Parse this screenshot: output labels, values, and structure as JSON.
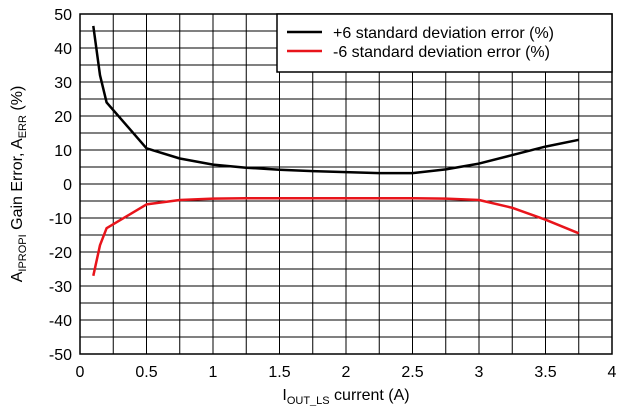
{
  "chart_data": {
    "type": "line",
    "xlabel": {
      "main": "I",
      "sub": "OUT_LS",
      "rest": " current (A)"
    },
    "ylabel": {
      "main": "A",
      "sub1": "IPROPI",
      "mid": " Gain Error, A",
      "sub2": "ERR",
      "rest": " (%)"
    },
    "xlim": [
      0,
      4
    ],
    "ylim": [
      -50,
      50
    ],
    "x_ticks": [
      0,
      0.5,
      1,
      1.5,
      2,
      2.5,
      3,
      3.5,
      4
    ],
    "x_tick_labels": [
      "0",
      "0.5",
      "1",
      "1.5",
      "2",
      "2.5",
      "3",
      "3.5",
      "4"
    ],
    "y_ticks": [
      -50,
      -40,
      -30,
      -20,
      -10,
      0,
      10,
      20,
      30,
      40,
      50
    ],
    "y_tick_labels": [
      "-50",
      "-40",
      "-30",
      "-20",
      "-10",
      "0",
      "10",
      "20",
      "30",
      "40",
      "50"
    ],
    "grid": true,
    "minor_x_step": 0.25,
    "minor_y_step": 5,
    "legend_position": "top-right",
    "series": [
      {
        "name": "+6 standard deviation error (%)",
        "color": "#000000",
        "x": [
          0.1,
          0.15,
          0.2,
          0.5,
          0.75,
          1.0,
          1.25,
          1.5,
          1.75,
          2.0,
          2.25,
          2.5,
          2.75,
          3.0,
          3.25,
          3.5,
          3.75
        ],
        "y": [
          46.5,
          32.0,
          24.0,
          10.5,
          7.5,
          5.7,
          4.8,
          4.2,
          3.8,
          3.5,
          3.2,
          3.2,
          4.3,
          6.0,
          8.5,
          11.0,
          13.0
        ]
      },
      {
        "name": "-6 standard deviation error (%)",
        "color": "#e8141b",
        "x": [
          0.1,
          0.15,
          0.2,
          0.5,
          0.75,
          1.0,
          1.25,
          1.5,
          1.75,
          2.0,
          2.25,
          2.5,
          2.75,
          3.0,
          3.25,
          3.5,
          3.75
        ],
        "y": [
          -27.0,
          -18.0,
          -13.0,
          -6.0,
          -4.7,
          -4.3,
          -4.2,
          -4.2,
          -4.2,
          -4.2,
          -4.2,
          -4.2,
          -4.3,
          -4.7,
          -7.0,
          -10.5,
          -14.5
        ]
      }
    ]
  }
}
